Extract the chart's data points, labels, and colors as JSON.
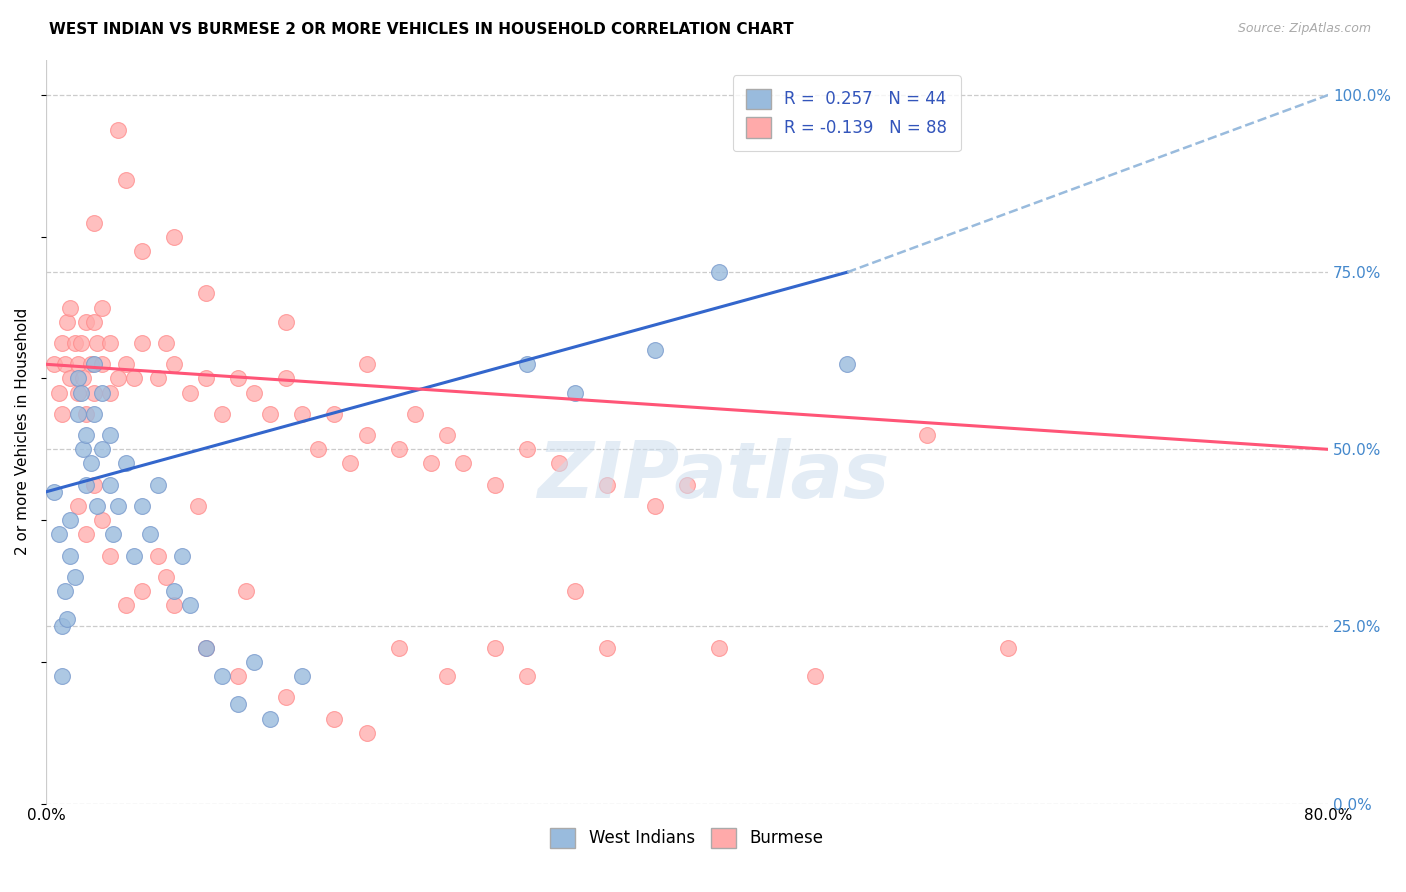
{
  "title": "WEST INDIAN VS BURMESE 2 OR MORE VEHICLES IN HOUSEHOLD CORRELATION CHART",
  "source": "Source: ZipAtlas.com",
  "ylabel": "2 or more Vehicles in Household",
  "x_tick_labels": [
    "0.0%",
    "",
    "",
    "",
    "",
    "",
    "",
    "",
    "80.0%"
  ],
  "x_tick_vals": [
    0.0,
    10.0,
    20.0,
    30.0,
    40.0,
    50.0,
    60.0,
    70.0,
    80.0
  ],
  "y_tick_labels_right": [
    "100.0%",
    "75.0%",
    "50.0%",
    "25.0%",
    "0.0%"
  ],
  "y_tick_vals": [
    100.0,
    75.0,
    50.0,
    25.0,
    0.0
  ],
  "xlim": [
    0.0,
    80.0
  ],
  "ylim": [
    0.0,
    105.0
  ],
  "watermark": "ZIPatlas",
  "blue_color": "#99BBDD",
  "pink_color": "#FFAAAA",
  "blue_edge": "#7799CC",
  "pink_edge": "#FF8888",
  "blue_line_color": "#3366CC",
  "pink_line_color": "#FF5577",
  "dashed_line_color": "#99BBDD",
  "blue_scatter": [
    [
      0.5,
      44.0
    ],
    [
      0.8,
      38.0
    ],
    [
      1.0,
      25.0
    ],
    [
      1.0,
      18.0
    ],
    [
      1.2,
      30.0
    ],
    [
      1.3,
      26.0
    ],
    [
      1.5,
      35.0
    ],
    [
      1.5,
      40.0
    ],
    [
      1.8,
      32.0
    ],
    [
      2.0,
      55.0
    ],
    [
      2.0,
      60.0
    ],
    [
      2.2,
      58.0
    ],
    [
      2.3,
      50.0
    ],
    [
      2.5,
      45.0
    ],
    [
      2.5,
      52.0
    ],
    [
      2.8,
      48.0
    ],
    [
      3.0,
      55.0
    ],
    [
      3.0,
      62.0
    ],
    [
      3.2,
      42.0
    ],
    [
      3.5,
      50.0
    ],
    [
      3.5,
      58.0
    ],
    [
      4.0,
      45.0
    ],
    [
      4.0,
      52.0
    ],
    [
      4.2,
      38.0
    ],
    [
      4.5,
      42.0
    ],
    [
      5.0,
      48.0
    ],
    [
      5.5,
      35.0
    ],
    [
      6.0,
      42.0
    ],
    [
      6.5,
      38.0
    ],
    [
      7.0,
      45.0
    ],
    [
      8.0,
      30.0
    ],
    [
      8.5,
      35.0
    ],
    [
      9.0,
      28.0
    ],
    [
      10.0,
      22.0
    ],
    [
      11.0,
      18.0
    ],
    [
      12.0,
      14.0
    ],
    [
      13.0,
      20.0
    ],
    [
      14.0,
      12.0
    ],
    [
      16.0,
      18.0
    ],
    [
      30.0,
      62.0
    ],
    [
      33.0,
      58.0
    ],
    [
      38.0,
      64.0
    ],
    [
      42.0,
      75.0
    ],
    [
      50.0,
      62.0
    ]
  ],
  "pink_scatter": [
    [
      0.5,
      62.0
    ],
    [
      0.8,
      58.0
    ],
    [
      1.0,
      65.0
    ],
    [
      1.0,
      55.0
    ],
    [
      1.2,
      62.0
    ],
    [
      1.3,
      68.0
    ],
    [
      1.5,
      60.0
    ],
    [
      1.5,
      70.0
    ],
    [
      1.8,
      65.0
    ],
    [
      2.0,
      62.0
    ],
    [
      2.0,
      58.0
    ],
    [
      2.2,
      65.0
    ],
    [
      2.3,
      60.0
    ],
    [
      2.5,
      68.0
    ],
    [
      2.5,
      55.0
    ],
    [
      2.8,
      62.0
    ],
    [
      3.0,
      68.0
    ],
    [
      3.0,
      58.0
    ],
    [
      3.2,
      65.0
    ],
    [
      3.5,
      62.0
    ],
    [
      3.5,
      70.0
    ],
    [
      4.0,
      58.0
    ],
    [
      4.0,
      65.0
    ],
    [
      4.5,
      60.0
    ],
    [
      4.5,
      95.0
    ],
    [
      5.0,
      88.0
    ],
    [
      5.0,
      62.0
    ],
    [
      5.5,
      60.0
    ],
    [
      6.0,
      65.0
    ],
    [
      6.0,
      78.0
    ],
    [
      7.0,
      60.0
    ],
    [
      7.5,
      65.0
    ],
    [
      8.0,
      62.0
    ],
    [
      8.0,
      80.0
    ],
    [
      9.0,
      58.0
    ],
    [
      10.0,
      60.0
    ],
    [
      10.0,
      72.0
    ],
    [
      11.0,
      55.0
    ],
    [
      12.0,
      60.0
    ],
    [
      13.0,
      58.0
    ],
    [
      14.0,
      55.0
    ],
    [
      15.0,
      60.0
    ],
    [
      15.0,
      68.0
    ],
    [
      16.0,
      55.0
    ],
    [
      17.0,
      50.0
    ],
    [
      18.0,
      55.0
    ],
    [
      19.0,
      48.0
    ],
    [
      20.0,
      52.0
    ],
    [
      20.0,
      62.0
    ],
    [
      22.0,
      50.0
    ],
    [
      23.0,
      55.0
    ],
    [
      24.0,
      48.0
    ],
    [
      25.0,
      52.0
    ],
    [
      26.0,
      48.0
    ],
    [
      28.0,
      45.0
    ],
    [
      30.0,
      50.0
    ],
    [
      32.0,
      48.0
    ],
    [
      35.0,
      45.0
    ],
    [
      38.0,
      42.0
    ],
    [
      40.0,
      45.0
    ],
    [
      2.0,
      42.0
    ],
    [
      2.5,
      38.0
    ],
    [
      3.0,
      45.0
    ],
    [
      3.5,
      40.0
    ],
    [
      4.0,
      35.0
    ],
    [
      5.0,
      28.0
    ],
    [
      6.0,
      30.0
    ],
    [
      7.0,
      35.0
    ],
    [
      8.0,
      28.0
    ],
    [
      10.0,
      22.0
    ],
    [
      12.0,
      18.0
    ],
    [
      15.0,
      15.0
    ],
    [
      18.0,
      12.0
    ],
    [
      20.0,
      10.0
    ],
    [
      22.0,
      22.0
    ],
    [
      25.0,
      18.0
    ],
    [
      28.0,
      22.0
    ],
    [
      30.0,
      18.0
    ],
    [
      35.0,
      22.0
    ],
    [
      42.0,
      22.0
    ],
    [
      48.0,
      18.0
    ],
    [
      3.0,
      82.0
    ],
    [
      55.0,
      52.0
    ],
    [
      60.0,
      22.0
    ],
    [
      7.5,
      32.0
    ],
    [
      9.5,
      42.0
    ],
    [
      12.5,
      30.0
    ],
    [
      33.0,
      30.0
    ]
  ],
  "blue_line": [
    [
      0.0,
      44.0
    ],
    [
      50.0,
      75.0
    ]
  ],
  "pink_line": [
    [
      0.0,
      62.0
    ],
    [
      80.0,
      50.0
    ]
  ],
  "dashed_line": [
    [
      50.0,
      75.0
    ],
    [
      80.0,
      100.0
    ]
  ]
}
